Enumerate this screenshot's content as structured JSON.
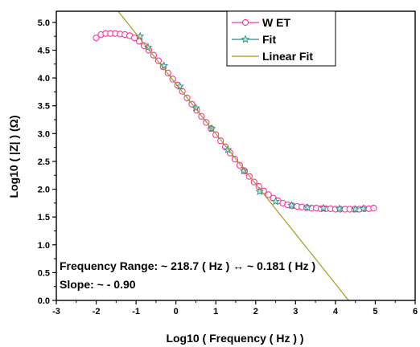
{
  "chart_data": {
    "type": "scatter",
    "xlabel": "Log10 ( Frequency ( Hz ) )",
    "ylabel": "Log10 ( |Z| ) (Ω)",
    "xlim": [
      -3,
      6
    ],
    "ylim": [
      0.0,
      5.2
    ],
    "x_ticks": [
      "-3",
      "-2",
      "-1",
      "0",
      "1",
      "2",
      "3",
      "4",
      "5",
      "6"
    ],
    "y_ticks": [
      "0.0",
      "0.5",
      "1.0",
      "1.5",
      "2.0",
      "2.5",
      "3.0",
      "3.5",
      "4.0",
      "4.5",
      "5.0"
    ],
    "legend_position": "top-right",
    "series": [
      {
        "name": "W ET",
        "marker": "circle",
        "color": "#ff3399",
        "x": [
          -2.0,
          -1.88,
          -1.76,
          -1.64,
          -1.52,
          -1.4,
          -1.28,
          -1.16,
          -1.04,
          -0.92,
          -0.8,
          -0.68,
          -0.56,
          -0.44,
          -0.32,
          -0.2,
          -0.08,
          0.04,
          0.16,
          0.28,
          0.4,
          0.52,
          0.64,
          0.76,
          0.88,
          1.0,
          1.12,
          1.24,
          1.36,
          1.48,
          1.6,
          1.72,
          1.84,
          1.96,
          2.08,
          2.2,
          2.32,
          2.44,
          2.56,
          2.68,
          2.8,
          2.92,
          3.04,
          3.16,
          3.28,
          3.4,
          3.52,
          3.64,
          3.76,
          3.88,
          4.0,
          4.12,
          4.24,
          4.36,
          4.48,
          4.6,
          4.72,
          4.84,
          4.96
        ],
        "y": [
          4.72,
          4.78,
          4.8,
          4.8,
          4.8,
          4.79,
          4.78,
          4.76,
          4.72,
          4.66,
          4.58,
          4.5,
          4.41,
          4.31,
          4.2,
          4.09,
          3.98,
          3.87,
          3.76,
          3.64,
          3.53,
          3.42,
          3.31,
          3.2,
          3.09,
          2.98,
          2.87,
          2.76,
          2.65,
          2.54,
          2.43,
          2.33,
          2.23,
          2.13,
          2.05,
          1.97,
          1.9,
          1.84,
          1.79,
          1.75,
          1.72,
          1.7,
          1.69,
          1.68,
          1.67,
          1.66,
          1.66,
          1.65,
          1.65,
          1.65,
          1.64,
          1.64,
          1.64,
          1.64,
          1.64,
          1.64,
          1.65,
          1.65,
          1.66
        ]
      },
      {
        "name": "Fit",
        "marker": "star",
        "color": "#2a8c8c",
        "x": [
          -0.9,
          -0.7,
          -0.3,
          0.1,
          0.5,
          0.9,
          1.3,
          1.7,
          2.1,
          2.5,
          2.9,
          3.3,
          3.7,
          4.1,
          4.5,
          4.7
        ],
        "y": [
          4.75,
          4.55,
          4.22,
          3.85,
          3.46,
          3.09,
          2.71,
          2.33,
          1.96,
          1.78,
          1.71,
          1.67,
          1.66,
          1.65,
          1.64,
          1.65
        ]
      },
      {
        "name": "Linear Fit",
        "line": true,
        "color": "#a89a1c",
        "slope": -0.9,
        "intercept": 3.9,
        "x": [
          -1.45,
          4.33
        ],
        "y": [
          5.2,
          0.0
        ]
      }
    ],
    "annotations": [
      "Frequency Range: ~ 218.7 ( Hz ) ↔ ~ 0.181 ( Hz )",
      "Slope: ~ - 0.90"
    ]
  }
}
